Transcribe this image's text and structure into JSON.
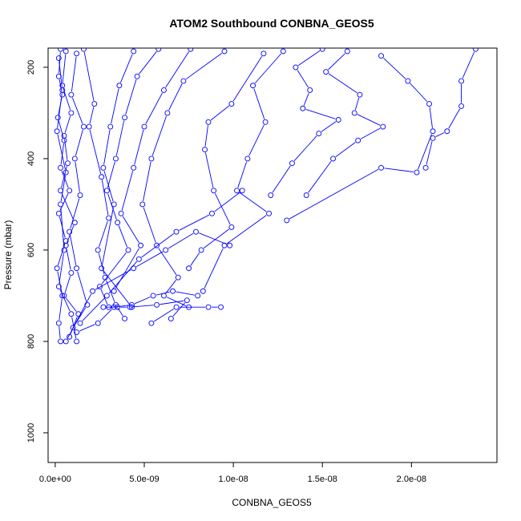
{
  "chart_data": {
    "type": "line",
    "title": "ATOM2 Southbound CONBNA_GEOS5",
    "xlabel": "CONBNA_GEOS5",
    "ylabel": "Pressure (mbar)",
    "xlim": [
      -4e-10,
      2.48e-08
    ],
    "ylim": [
      1065,
      158
    ],
    "y_reversed": true,
    "xticks": [
      0,
      5e-09,
      1e-08,
      1.5e-08,
      2e-08
    ],
    "xtick_labels": [
      "0.0e+00",
      "5.0e-09",
      "1.0e-08",
      "1.5e-08",
      "2.0e-08"
    ],
    "yticks": [
      200,
      400,
      600,
      800,
      1000
    ],
    "ytick_labels": [
      "200",
      "400",
      "600",
      "800",
      "1000"
    ],
    "marker": "open-circle",
    "color": "#0000ff",
    "grid": false,
    "series": [
      {
        "x": [
          3e-10,
          2e-10,
          4e-10,
          1.5e-10,
          5e-10,
          3e-10,
          8e-10,
          2e-10,
          6e-10,
          1e-10,
          4e-10,
          2e-10,
          3e-10
        ],
        "y": [
          160,
          220,
          260,
          310,
          360,
          420,
          470,
          520,
          580,
          640,
          700,
          760,
          800
        ]
      },
      {
        "x": [
          6e-10,
          4e-10,
          9e-10,
          5e-10,
          7e-10,
          3e-10,
          1.1e-09,
          6e-10,
          9e-10,
          5e-10,
          1.3e-09,
          8e-10
        ],
        "y": [
          165,
          240,
          300,
          350,
          410,
          470,
          540,
          590,
          650,
          700,
          740,
          790
        ]
      },
      {
        "x": [
          1.2e-09,
          9e-10,
          1.6e-09,
          1.1e-09,
          1.4e-09,
          8e-10,
          1.2e-09,
          1.8e-09,
          1e-09
        ],
        "y": [
          170,
          260,
          330,
          400,
          480,
          560,
          640,
          720,
          770
        ]
      },
      {
        "x": [
          2e-10,
          4e-10,
          1e-10,
          6e-10,
          3e-10,
          5e-10,
          2e-10,
          9e-10,
          1.2e-09
        ],
        "y": [
          180,
          250,
          340,
          430,
          500,
          600,
          680,
          740,
          800
        ]
      },
      {
        "x": [
          1.6e-09,
          2.2e-09,
          1.9e-09,
          2.6e-09,
          3e-09,
          2.4e-09,
          2.8e-09,
          3.4e-09,
          3.9e-09
        ],
        "y": [
          160,
          280,
          330,
          440,
          530,
          600,
          660,
          720,
          750
        ]
      },
      {
        "x": [
          4.4e-09,
          3.6e-09,
          3.1e-09,
          2.7e-09,
          3.3e-09,
          2.6e-09,
          4.3e-09
        ],
        "y": [
          165,
          240,
          330,
          420,
          500,
          640,
          725
        ]
      },
      {
        "x": [
          5.8e-09,
          4.6e-09,
          3.9e-09,
          3.4e-09,
          2.9e-09,
          3.5e-09,
          4.1e-09,
          2.5e-09,
          3e-09
        ],
        "y": [
          160,
          220,
          310,
          400,
          470,
          540,
          600,
          680,
          725
        ]
      },
      {
        "x": [
          7.6e-09,
          6.1e-09,
          5e-09,
          4.4e-09,
          3.7e-09,
          4.8e-09,
          3.3e-09
        ],
        "y": [
          160,
          250,
          330,
          420,
          520,
          590,
          690
        ]
      },
      {
        "x": [
          9.5e-09,
          7.2e-09,
          6.3e-09,
          5.4e-09,
          4.9e-09,
          5.7e-09,
          6.9e-09,
          6.1e-09,
          7.5e-09
        ],
        "y": [
          165,
          230,
          300,
          400,
          500,
          590,
          660,
          700,
          725
        ]
      },
      {
        "x": [
          1.17e-08,
          9.9e-09,
          8.6e-09,
          8.4e-09,
          8.9e-09,
          9.9e-09,
          8.2e-09,
          7.5e-09
        ],
        "y": [
          170,
          280,
          320,
          380,
          470,
          550,
          600,
          640
        ]
      },
      {
        "x": [
          1.28e-08,
          1.11e-08,
          1.18e-08,
          1.08e-08,
          1.02e-08,
          1.2e-08,
          9.5e-09,
          8.3e-09
        ],
        "y": [
          165,
          240,
          320,
          400,
          470,
          520,
          590,
          690
        ]
      },
      {
        "x": [
          1.5e-08,
          1.35e-08,
          1.43e-08,
          1.39e-08,
          1.59e-08,
          1.48e-08,
          1.33e-08,
          1.21e-08
        ],
        "y": [
          160,
          200,
          250,
          290,
          315,
          345,
          410,
          480
        ]
      },
      {
        "x": [
          1.64e-08,
          1.52e-08,
          1.71e-08,
          1.68e-08,
          1.84e-08,
          1.7e-08,
          1.56e-08,
          1.41e-08
        ],
        "y": [
          165,
          210,
          260,
          300,
          330,
          360,
          400,
          480
        ]
      },
      {
        "x": [
          1.83e-08,
          1.98e-08,
          2.1e-08,
          2.12e-08,
          2.03e-08,
          1.83e-08,
          1.3e-08
        ],
        "y": [
          175,
          230,
          280,
          340,
          430,
          420,
          535
        ]
      },
      {
        "x": [
          2.36e-08,
          2.28e-08,
          2.28e-08,
          2.2e-08,
          2.12e-08,
          2.08e-08
        ],
        "y": [
          160,
          230,
          285,
          340,
          355,
          420
        ]
      },
      {
        "x": [
          5.4e-09,
          6.8e-09,
          8.6e-09,
          9.3e-09
        ],
        "y": [
          760,
          725,
          725,
          725
        ]
      },
      {
        "x": [
          2.7e-09,
          3.5e-09,
          4.2e-09,
          5.7e-09,
          7.4e-09,
          6.5e-09
        ],
        "y": [
          725,
          725,
          725,
          720,
          710,
          750
        ]
      },
      {
        "x": [
          1.2e-09,
          2.4e-09,
          3.3e-09,
          4.3e-09,
          5.5e-09,
          6.6e-09,
          8e-09
        ],
        "y": [
          780,
          760,
          725,
          720,
          700,
          690,
          700
        ]
      },
      {
        "x": [
          6e-10,
          2.1e-09,
          4.4e-09,
          6.2e-09,
          7.9e-09,
          9.8e-09
        ],
        "y": [
          800,
          690,
          640,
          600,
          560,
          590
        ]
      },
      {
        "x": [
          1.4e-09,
          2.9e-09,
          4.7e-09,
          6.8e-09,
          8.8e-09,
          1.05e-08
        ],
        "y": [
          760,
          700,
          620,
          560,
          520,
          470
        ]
      }
    ]
  }
}
